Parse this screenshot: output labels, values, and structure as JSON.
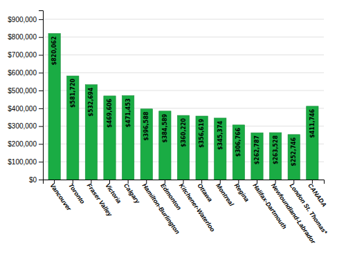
{
  "chart_data": {
    "type": "bar",
    "categories": [
      "Vancouver",
      "Toronto",
      "Fraser Valley",
      "Victoria",
      "Calgary",
      "Hamilton-Burlington",
      "Edmonton",
      "Kitchener-Waterloo",
      "Ottawa",
      "Montreal",
      "Regina",
      "Halifax-Dartmouth",
      "Newfoundland-Labrador",
      "London St. Thomas*",
      "CANADA"
    ],
    "values": [
      820062,
      581720,
      532694,
      469606,
      471453,
      396588,
      384589,
      360220,
      356619,
      345374,
      306766,
      262787,
      263528,
      252746,
      411746
    ],
    "value_labels": [
      "$820,062",
      "$581,720",
      "$532,694",
      "$469,606",
      "$471,453",
      "$396,588",
      "$384,589",
      "$360,220",
      "$356,619",
      "$345,374",
      "$306,766",
      "$262,787",
      "$263,528",
      "$252,746",
      "$411,746"
    ],
    "data_labels": true,
    "color": "#1aac44",
    "ylim": [
      0,
      950000
    ],
    "yticks": [
      {
        "value": 0,
        "label": "$0"
      },
      {
        "value": 100000,
        "label": "$100,000"
      },
      {
        "value": 200000,
        "label": "$200,000"
      },
      {
        "value": 300000,
        "label": "$300,000"
      },
      {
        "value": 400000,
        "label": "$400,000"
      },
      {
        "value": 500000,
        "label": "$500,000"
      },
      {
        "value": 600000,
        "label": "$600,000"
      },
      {
        "value": 700000,
        "label": "$700,000"
      },
      {
        "value": 800000,
        "label": "$800,000"
      },
      {
        "value": 900000,
        "label": "$900,000"
      }
    ],
    "grid": true
  }
}
